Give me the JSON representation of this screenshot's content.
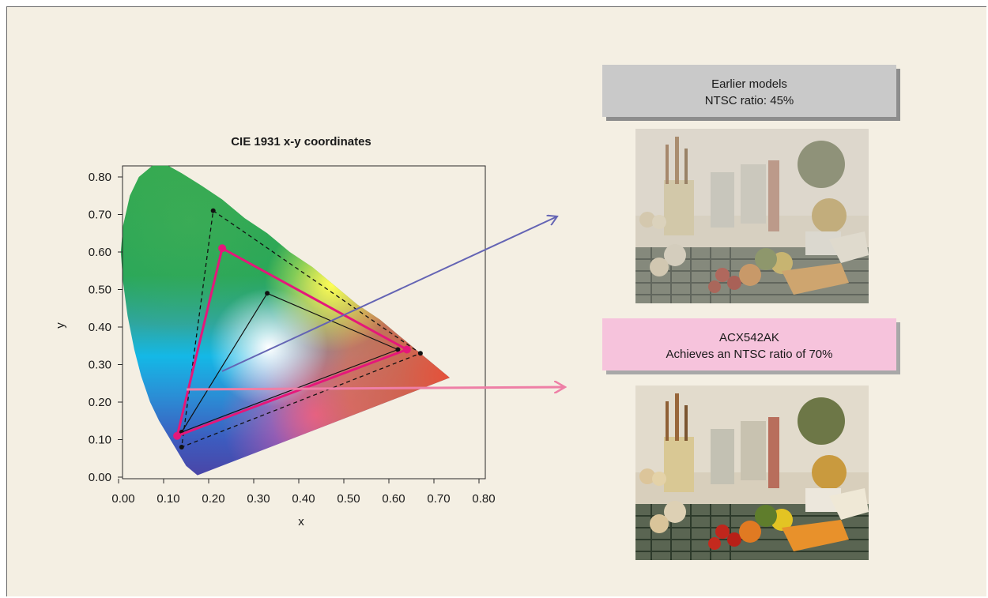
{
  "chart_data": {
    "type": "scatter",
    "title": "CIE 1931 x-y coordinates",
    "xlabel": "x",
    "ylabel": "y",
    "xlim": [
      0,
      0.8
    ],
    "ylim": [
      0,
      0.85
    ],
    "xticks": [
      "0.00",
      "0.10",
      "0.20",
      "0.30",
      "0.40",
      "0.50",
      "0.60",
      "0.70",
      "0.80"
    ],
    "yticks": [
      "0.00",
      "0.10",
      "0.20",
      "0.30",
      "0.40",
      "0.50",
      "0.60",
      "0.70",
      "0.80"
    ],
    "grid": false,
    "gamuts": [
      {
        "style": "dashed-black",
        "points": [
          [
            0.21,
            0.71
          ],
          [
            0.67,
            0.33
          ],
          [
            0.14,
            0.08
          ]
        ]
      },
      {
        "style": "solid-magenta",
        "points": [
          [
            0.23,
            0.61
          ],
          [
            0.64,
            0.34
          ],
          [
            0.13,
            0.11
          ]
        ]
      },
      {
        "style": "solid-black-thin",
        "points": [
          [
            0.33,
            0.49
          ],
          [
            0.62,
            0.34
          ],
          [
            0.14,
            0.12
          ]
        ]
      }
    ]
  },
  "callouts": {
    "earlier": {
      "line1": "Earlier models",
      "line2": "NTSC ratio: 45%"
    },
    "new": {
      "line1": "ACX542AK",
      "line2": "Achieves an NTSC ratio of 70%"
    }
  },
  "colors": {
    "background": "#f4efe3",
    "magenta_gamut": "#e5177a",
    "arrow_blue": "#6464b4",
    "arrow_pink": "#ee7fa6",
    "callout_gray": "#c9c9c9",
    "callout_pink": "#f6c3dc"
  }
}
